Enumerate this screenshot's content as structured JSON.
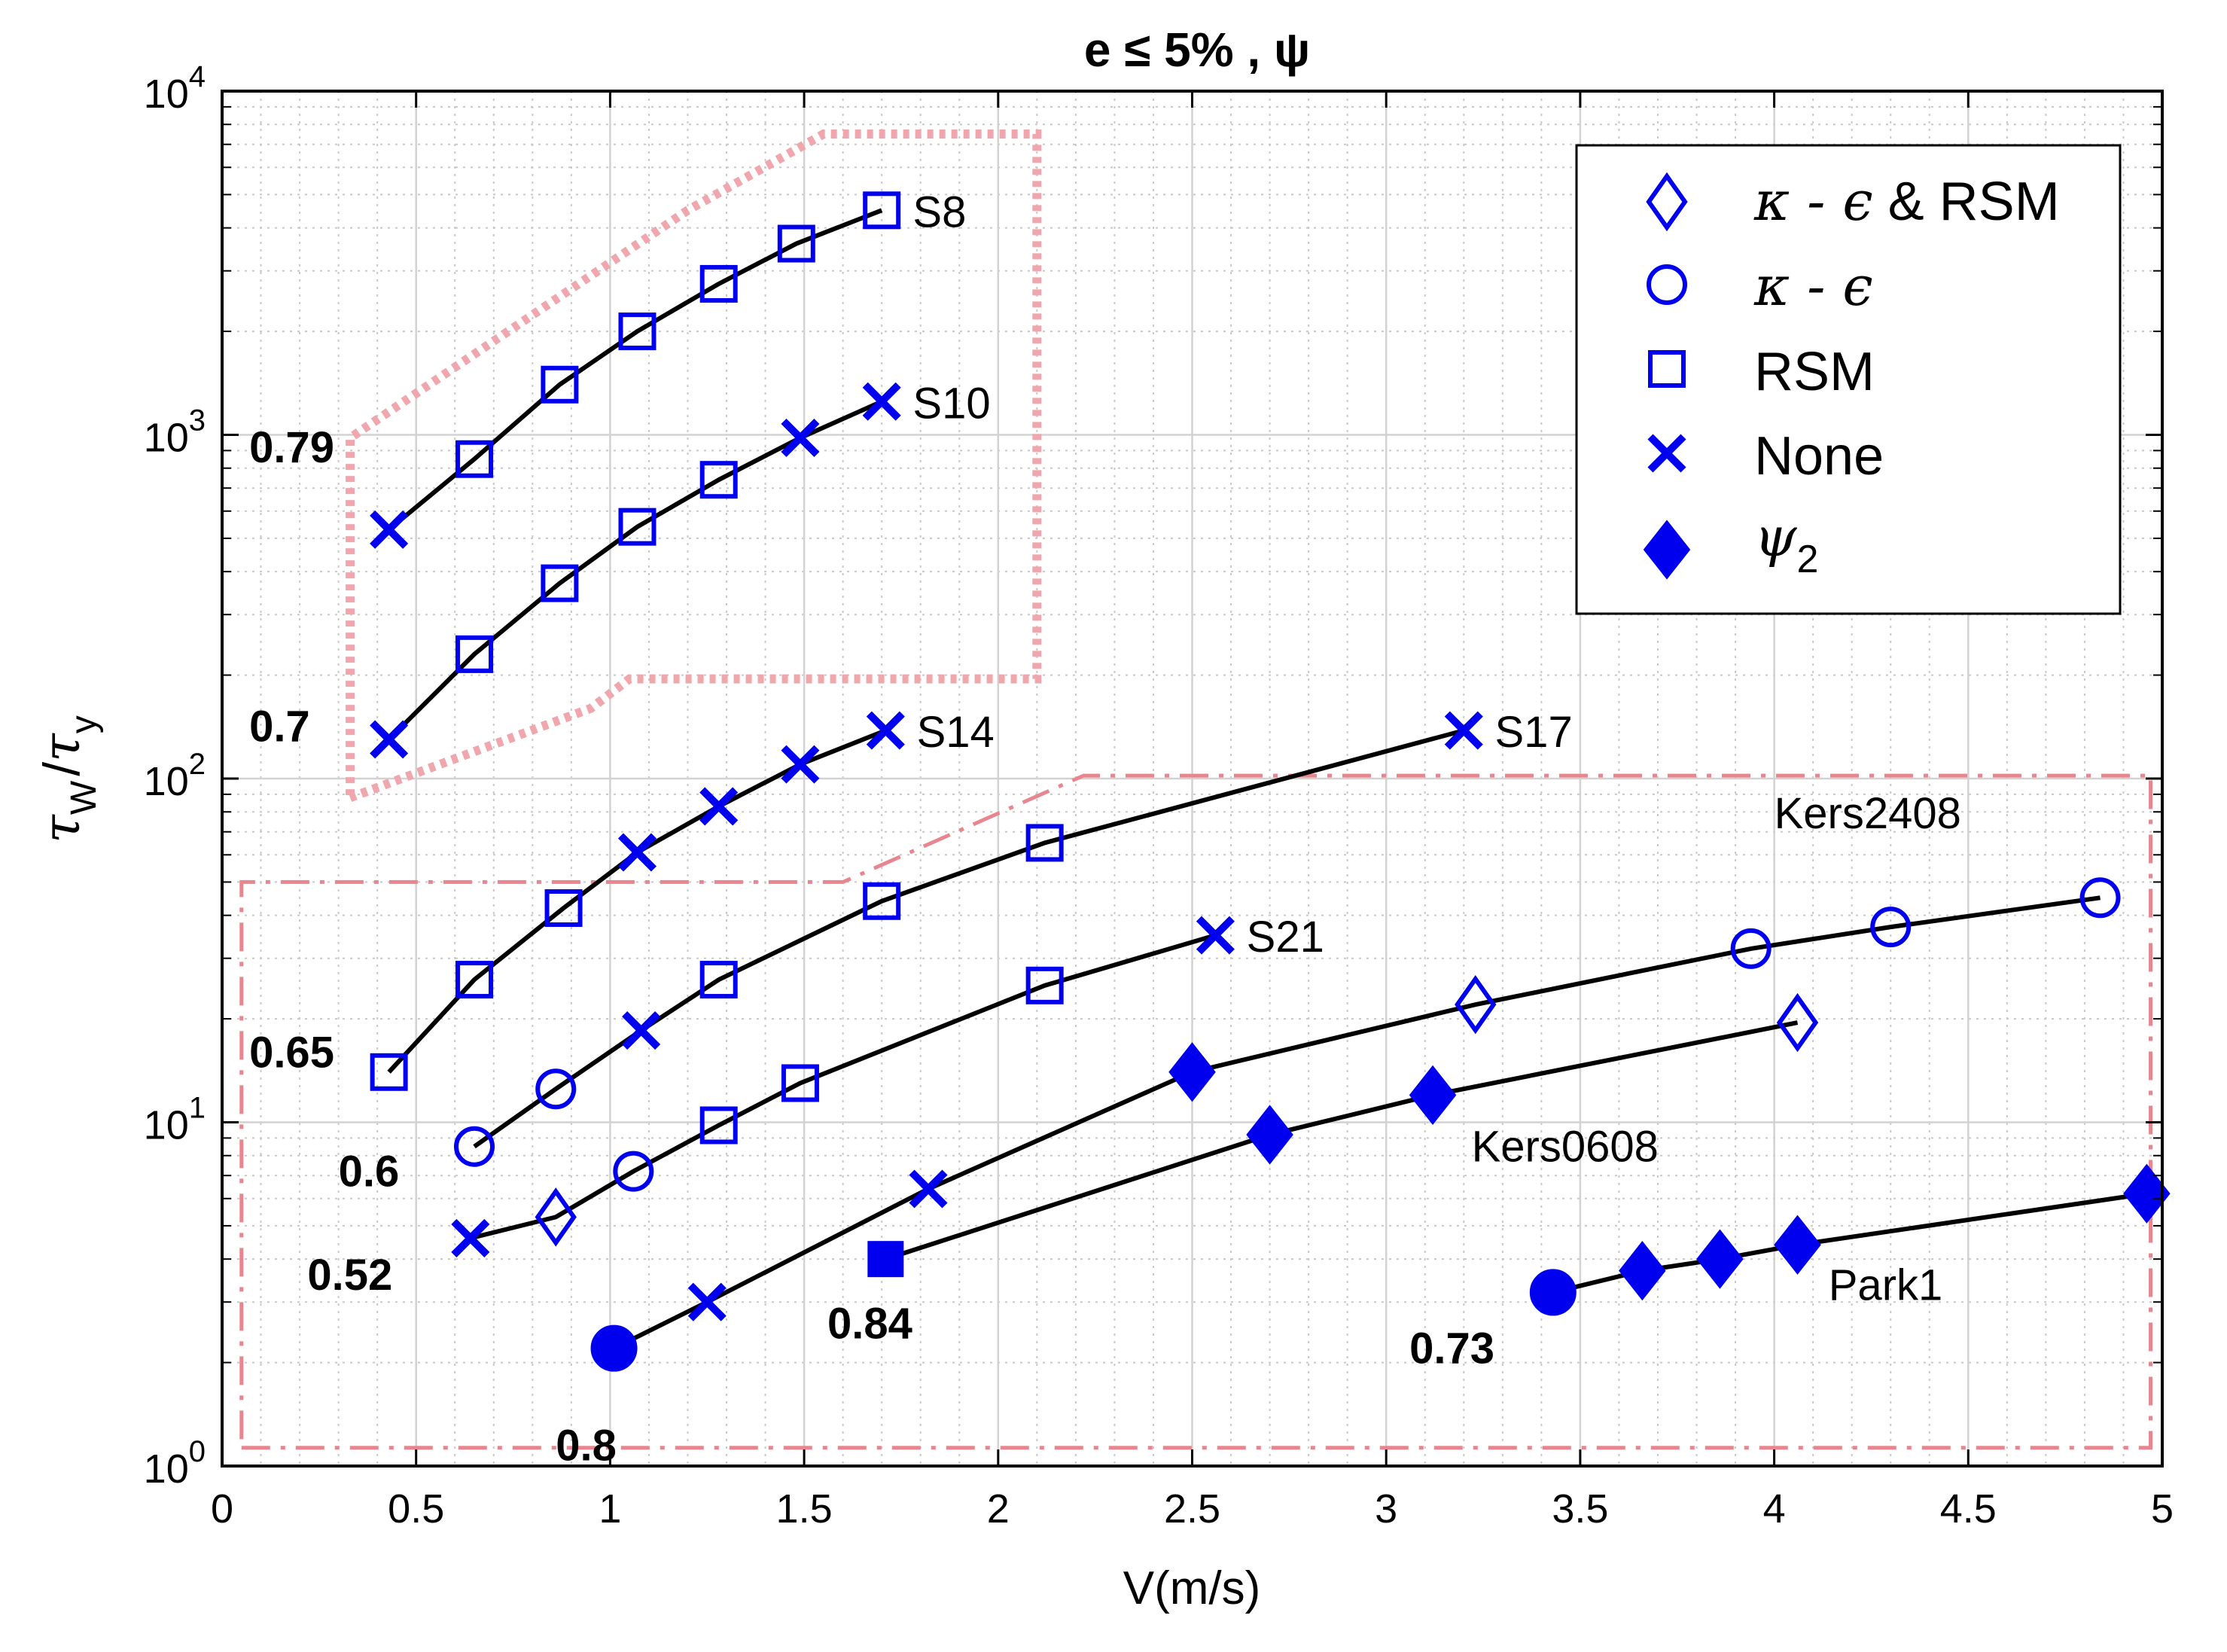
{
  "chart_data": {
    "type": "line",
    "title": "e ≤ 5% , ψ",
    "xlabel": "V(m/s)",
    "ylabel_main": "τ",
    "ylabel_sub1": "W",
    "ylabel_slash": "/",
    "ylabel_sub2": "y",
    "xlim": [
      0,
      5
    ],
    "ylim": [
      1,
      10000
    ],
    "yscale": "log",
    "grid": true,
    "minor_grid": true,
    "xticks": [
      0,
      0.5,
      1,
      1.5,
      2,
      2.5,
      3,
      3.5,
      4,
      4.5,
      5
    ],
    "xtick_labels": [
      "0",
      "0.5",
      "1",
      "1.5",
      "2",
      "2.5",
      "3",
      "3.5",
      "4",
      "4.5",
      "5"
    ],
    "yticks": [
      {
        "value": 1,
        "base": "10",
        "exp": "0"
      },
      {
        "value": 10,
        "base": "10",
        "exp": "1"
      },
      {
        "value": 100,
        "base": "10",
        "exp": "2"
      },
      {
        "value": 1000,
        "base": "10",
        "exp": "3"
      },
      {
        "value": 10000,
        "base": "10",
        "exp": "4"
      }
    ],
    "legend": {
      "placement": "top-right",
      "entries": [
        {
          "marker": "diamond-open",
          "label_greek": "κ - ϵ",
          "label_rest": " & RSM"
        },
        {
          "marker": "circle-open",
          "label_greek": "κ - ϵ",
          "label_rest": ""
        },
        {
          "marker": "square-open",
          "label_greek": "",
          "label_rest": "RSM"
        },
        {
          "marker": "x",
          "label_greek": "",
          "label_rest": "None"
        },
        {
          "marker": "diamond-filled",
          "label_greek": "ψ",
          "label_rest": "",
          "label_sub": "2"
        }
      ]
    },
    "series": [
      {
        "name": "S8",
        "fraction": "0.79",
        "points": [
          [
            0.43,
            530,
            "x"
          ],
          [
            0.65,
            850,
            "square-open"
          ],
          [
            0.87,
            1400,
            "square-open"
          ],
          [
            1.07,
            2000,
            "square-open"
          ],
          [
            1.28,
            2750,
            "square-open"
          ],
          [
            1.48,
            3600,
            "square-open"
          ],
          [
            1.7,
            4500,
            "square-open"
          ]
        ]
      },
      {
        "name": "S10",
        "fraction": "0.7",
        "points": [
          [
            0.43,
            130,
            "x"
          ],
          [
            0.65,
            230,
            "square-open"
          ],
          [
            0.87,
            370,
            "square-open"
          ],
          [
            1.07,
            540,
            "square-open"
          ],
          [
            1.28,
            740,
            "square-open"
          ],
          [
            1.49,
            980,
            "x"
          ],
          [
            1.7,
            1250,
            "x"
          ]
        ]
      },
      {
        "name": "S14",
        "fraction": "0.65",
        "points": [
          [
            0.43,
            14,
            "square-open"
          ],
          [
            0.65,
            26,
            "square-open"
          ],
          [
            0.88,
            42,
            "square-open"
          ],
          [
            1.07,
            61,
            "x"
          ],
          [
            1.28,
            83,
            "x"
          ],
          [
            1.49,
            110,
            "x"
          ],
          [
            1.71,
            138,
            "x"
          ]
        ]
      },
      {
        "name": "S17",
        "fraction": "0.6",
        "points": [
          [
            0.65,
            8.5,
            "circle-open"
          ],
          [
            0.86,
            12.5,
            "circle-open"
          ],
          [
            1.08,
            18.5,
            "x"
          ],
          [
            1.28,
            26,
            "square-open"
          ],
          [
            1.7,
            44,
            "square-open"
          ],
          [
            2.12,
            65,
            "square-open"
          ],
          [
            3.2,
            138,
            "x"
          ]
        ]
      },
      {
        "name": "S21",
        "fraction": "0.52",
        "points": [
          [
            0.64,
            4.6,
            "x"
          ],
          [
            0.86,
            5.3,
            "diamond-open"
          ],
          [
            1.06,
            7.2,
            "circle-open"
          ],
          [
            1.28,
            9.8,
            "square-open"
          ],
          [
            1.49,
            13,
            "square-open"
          ],
          [
            2.12,
            25,
            "square-open"
          ],
          [
            2.56,
            35,
            "x"
          ]
        ]
      },
      {
        "name": "Kers2408",
        "fraction": "0.8",
        "points": [
          [
            1.01,
            2.2,
            "circle-filled"
          ],
          [
            1.25,
            3,
            "x"
          ],
          [
            1.82,
            6.4,
            "x"
          ],
          [
            2.5,
            14,
            "diamond-filled"
          ],
          [
            3.23,
            22,
            "diamond-open"
          ],
          [
            3.94,
            32,
            "circle-open"
          ],
          [
            4.3,
            37,
            "circle-open"
          ],
          [
            4.84,
            45,
            "circle-open"
          ]
        ]
      },
      {
        "name": "Kers0608",
        "fraction": "0.84",
        "points": [
          [
            1.71,
            4,
            "square-filled"
          ],
          [
            2.7,
            9.2,
            "diamond-filled"
          ],
          [
            3.12,
            12,
            "diamond-filled"
          ],
          [
            4.06,
            19.5,
            "diamond-open"
          ]
        ]
      },
      {
        "name": "Park1",
        "fraction": "0.73",
        "points": [
          [
            3.43,
            3.2,
            "circle-filled"
          ],
          [
            3.66,
            3.7,
            "diamond-filled"
          ],
          [
            3.86,
            4,
            "diamond-filled"
          ],
          [
            4.06,
            4.4,
            "diamond-filled"
          ],
          [
            4.96,
            6.2,
            "diamond-filled"
          ]
        ]
      }
    ],
    "series_label_anchors": [
      {
        "name": "S8",
        "x": 1.78,
        "y": 4500
      },
      {
        "name": "S10",
        "x": 1.78,
        "y": 1250
      },
      {
        "name": "S14",
        "x": 1.79,
        "y": 138
      },
      {
        "name": "S17",
        "x": 3.28,
        "y": 138
      },
      {
        "name": "Kers2408",
        "x": 4.0,
        "y": 80
      },
      {
        "name": "S21",
        "x": 2.64,
        "y": 35
      },
      {
        "name": "Kers0608",
        "x": 3.22,
        "y": 8.6
      },
      {
        "name": "Park1",
        "x": 4.14,
        "y": 3.4
      }
    ],
    "fraction_label_anchors": [
      {
        "name": "S8",
        "x": 0.07,
        "y": 920
      },
      {
        "name": "S10",
        "x": 0.07,
        "y": 142
      },
      {
        "name": "S14",
        "x": 0.07,
        "y": 16
      },
      {
        "name": "S17",
        "x": 0.3,
        "y": 7.2
      },
      {
        "name": "S21",
        "x": 0.22,
        "y": 3.6
      },
      {
        "name": "Kers2408",
        "x": 0.86,
        "y": 1.15
      },
      {
        "name": "Kers0608",
        "x": 1.56,
        "y": 2.6
      },
      {
        "name": "Park1",
        "x": 3.06,
        "y": 2.2
      }
    ],
    "annotation_regions": [
      {
        "name": "low-range-region",
        "style": "dash-dot",
        "color": "#e8868f",
        "polygon": [
          [
            0.05,
            1.13
          ],
          [
            4.97,
            1.13
          ],
          [
            4.97,
            102
          ],
          [
            2.22,
            102
          ],
          [
            1.6,
            50
          ],
          [
            0.05,
            50
          ]
        ]
      },
      {
        "name": "high-range-region",
        "style": "dotted",
        "color": "#efa6ad",
        "polygon": [
          [
            0.33,
            88
          ],
          [
            0.95,
            160
          ],
          [
            1.05,
            195
          ],
          [
            2.1,
            195
          ],
          [
            2.1,
            7500
          ],
          [
            1.55,
            7500
          ],
          [
            1.2,
            4500
          ],
          [
            0.33,
            980
          ]
        ]
      }
    ]
  }
}
